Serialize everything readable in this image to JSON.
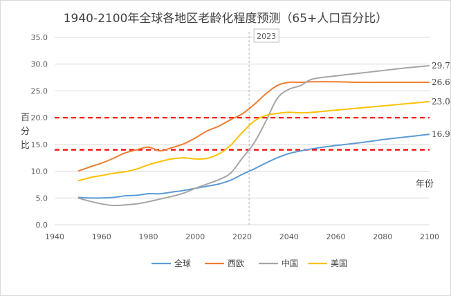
{
  "chart_data": {
    "type": "line",
    "title": "1940-2100年全球各地区老龄化程度预测（65+人口百分比）",
    "xlabel": "年份",
    "ylabel": "百分比",
    "xlim": [
      1940,
      2100
    ],
    "ylim": [
      0,
      35
    ],
    "x_ticks": [
      "1940",
      "1960",
      "1980",
      "2000",
      "2020",
      "2040",
      "2060",
      "2080",
      "2100"
    ],
    "y_ticks": [
      "0.0",
      "5.0",
      "10.0",
      "15.0",
      "20.0",
      "25.0",
      "30.0",
      "35.0"
    ],
    "grid": true,
    "legend": "bottom",
    "reference_year": 2023,
    "reference_year_label": "2023",
    "threshold_lines": [
      20.0,
      14.0
    ],
    "series": [
      {
        "name": "全球",
        "color": "#5b9bd5",
        "end_label": "16.9",
        "x": [
          1950,
          1955,
          1960,
          1965,
          1970,
          1975,
          1980,
          1985,
          1990,
          1995,
          2000,
          2005,
          2010,
          2015,
          2020,
          2025,
          2030,
          2035,
          2040,
          2045,
          2050,
          2060,
          2070,
          2080,
          2090,
          2100
        ],
        "y": [
          5.1,
          5.0,
          5.0,
          5.1,
          5.4,
          5.5,
          5.8,
          5.8,
          6.1,
          6.4,
          6.8,
          7.2,
          7.6,
          8.3,
          9.4,
          10.4,
          11.5,
          12.5,
          13.3,
          13.8,
          14.2,
          14.8,
          15.3,
          15.9,
          16.4,
          16.9
        ]
      },
      {
        "name": "西欧",
        "color": "#ed7d31",
        "end_label": "26.6",
        "x": [
          1950,
          1955,
          1960,
          1965,
          1970,
          1975,
          1980,
          1985,
          1990,
          1995,
          2000,
          2005,
          2010,
          2015,
          2020,
          2025,
          2030,
          2035,
          2040,
          2045,
          2050,
          2060,
          2070,
          2080,
          2090,
          2100
        ],
        "y": [
          10.0,
          10.8,
          11.5,
          12.4,
          13.4,
          14.0,
          14.5,
          13.8,
          14.4,
          15.1,
          16.2,
          17.5,
          18.4,
          19.6,
          20.7,
          22.4,
          24.4,
          26.0,
          26.6,
          26.6,
          26.7,
          26.7,
          26.6,
          26.6,
          26.6,
          26.6
        ]
      },
      {
        "name": "中国",
        "color": "#a5a5a5",
        "end_label": "29.7",
        "x": [
          1950,
          1955,
          1960,
          1965,
          1970,
          1975,
          1980,
          1985,
          1990,
          1995,
          2000,
          2005,
          2010,
          2015,
          2020,
          2025,
          2030,
          2035,
          2040,
          2045,
          2050,
          2060,
          2070,
          2080,
          2090,
          2100
        ],
        "y": [
          5.0,
          4.4,
          3.9,
          3.6,
          3.7,
          3.9,
          4.3,
          4.8,
          5.3,
          5.9,
          6.8,
          7.6,
          8.4,
          9.6,
          12.4,
          15.2,
          19.2,
          23.6,
          25.3,
          26.0,
          27.2,
          27.8,
          28.3,
          28.8,
          29.3,
          29.7
        ]
      },
      {
        "name": "美国",
        "color": "#ffc000",
        "end_label": "23.0",
        "x": [
          1950,
          1955,
          1960,
          1965,
          1970,
          1975,
          1980,
          1985,
          1990,
          1995,
          2000,
          2005,
          2010,
          2015,
          2020,
          2025,
          2030,
          2035,
          2040,
          2045,
          2050,
          2060,
          2070,
          2080,
          2090,
          2100
        ],
        "y": [
          8.2,
          8.8,
          9.2,
          9.6,
          9.9,
          10.4,
          11.2,
          11.8,
          12.3,
          12.5,
          12.3,
          12.4,
          13.2,
          14.8,
          17.2,
          19.3,
          20.4,
          20.8,
          21.0,
          20.9,
          21.0,
          21.4,
          21.8,
          22.2,
          22.6,
          23.0
        ]
      }
    ]
  }
}
